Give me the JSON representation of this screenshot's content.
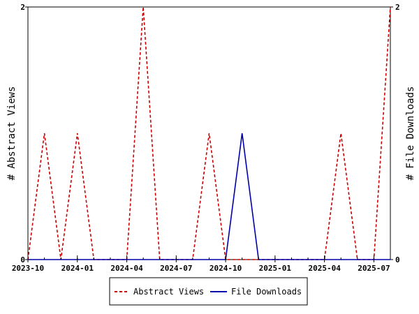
{
  "chart_data": {
    "type": "line",
    "ylabel_left": "# Abstract Views",
    "ylabel_right": "# File Downloads",
    "x_ticks": [
      "2023-10",
      "2024-01",
      "2024-04",
      "2024-07",
      "2024-10",
      "2025-01",
      "2025-04",
      "2025-07"
    ],
    "x_range": [
      "2023-10",
      "2025-08"
    ],
    "y_left_range": [
      0,
      2
    ],
    "y_right_range": [
      0,
      2
    ],
    "y_left_ticks": [
      "0",
      "2"
    ],
    "y_right_ticks": [
      "0",
      "2"
    ],
    "grid": false,
    "legend_position": "bottom",
    "months": [
      "2023-10",
      "2023-11",
      "2023-12",
      "2024-01",
      "2024-02",
      "2024-03",
      "2024-04",
      "2024-05",
      "2024-06",
      "2024-07",
      "2024-08",
      "2024-09",
      "2024-10",
      "2024-11",
      "2024-12",
      "2025-01",
      "2025-02",
      "2025-03",
      "2025-04",
      "2025-05",
      "2025-06",
      "2025-07",
      "2025-08"
    ],
    "series": [
      {
        "name": "Abstract Views",
        "axis": "left",
        "color": "#cc0000",
        "dash": true,
        "values": [
          0,
          1,
          0,
          1,
          0,
          0,
          0,
          2,
          0,
          0,
          0,
          1,
          0,
          0,
          0,
          0,
          0,
          0,
          0,
          1,
          0,
          0,
          2
        ]
      },
      {
        "name": "File Downloads",
        "axis": "right",
        "color": "#0000aa",
        "dash": false,
        "values": [
          0,
          0,
          0,
          0,
          0,
          0,
          0,
          0,
          0,
          0,
          0,
          0,
          0,
          1,
          0,
          0,
          0,
          0,
          0,
          0,
          0,
          0,
          0
        ]
      }
    ]
  }
}
